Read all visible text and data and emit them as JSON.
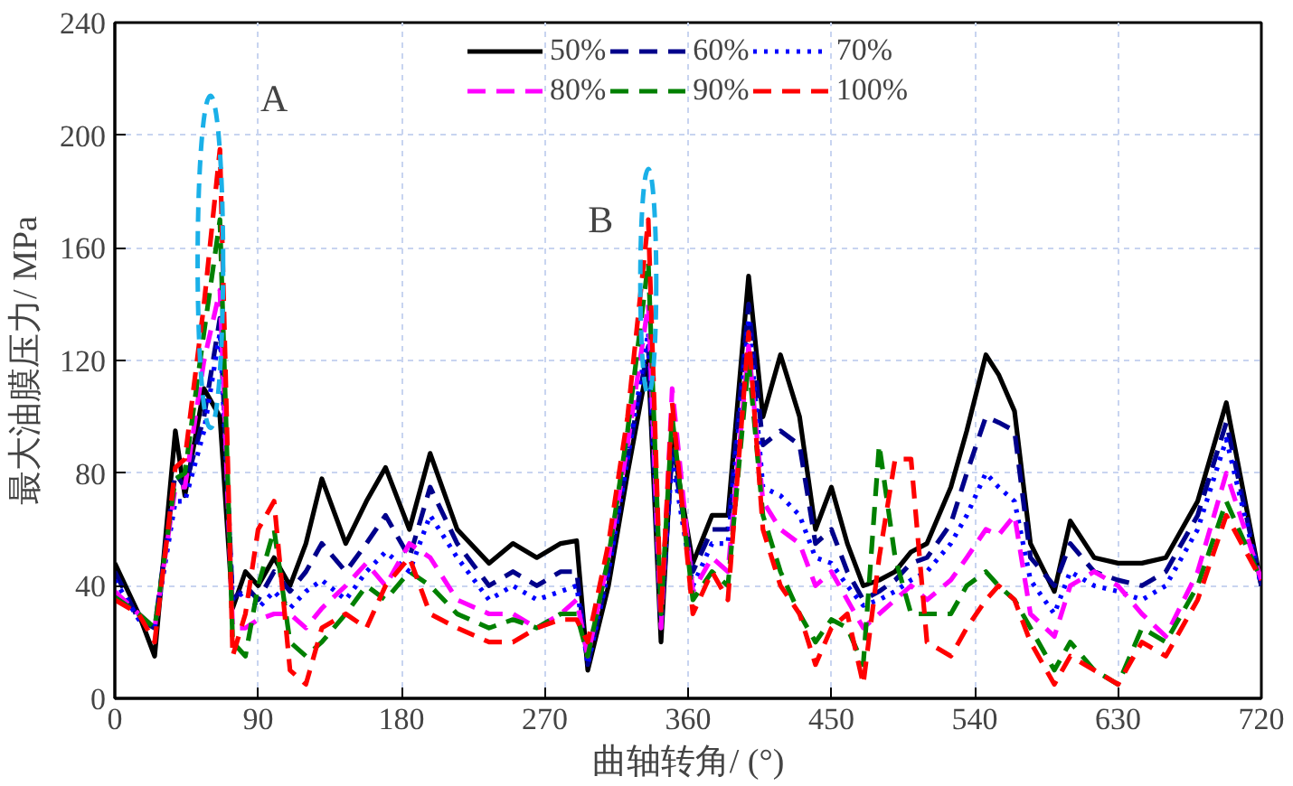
{
  "chart_data": {
    "type": "line",
    "xlabel": "曲轴转角/ (°)",
    "ylabel": "最大油膜压力/ MPa",
    "x": [
      0,
      15,
      25,
      38,
      44,
      56,
      66,
      74,
      82,
      90,
      100,
      110,
      120,
      130,
      145,
      158,
      170,
      185,
      198,
      215,
      235,
      250,
      265,
      280,
      290,
      297,
      310,
      322,
      335,
      343,
      350,
      363,
      375,
      385,
      398,
      407,
      418,
      430,
      440,
      450,
      460,
      470,
      480,
      490,
      500,
      510,
      525,
      535,
      547,
      555,
      565,
      575,
      590,
      600,
      615,
      630,
      645,
      660,
      680,
      698,
      720
    ],
    "xlim": [
      0,
      720
    ],
    "xticks": [
      0,
      90,
      180,
      270,
      360,
      450,
      540,
      630,
      720
    ],
    "ylim": [
      0,
      240
    ],
    "yticks": [
      0,
      40,
      80,
      120,
      160,
      200,
      240
    ],
    "grid": true,
    "legend": "top",
    "annotations": [
      "A",
      "B"
    ],
    "series": [
      {
        "name": "50%",
        "color": "#000000",
        "line_style": "solid",
        "values": [
          48,
          30,
          15,
          95,
          72,
          110,
          100,
          32,
          45,
          40,
          50,
          40,
          55,
          78,
          55,
          70,
          82,
          60,
          87,
          60,
          48,
          55,
          50,
          55,
          56,
          10,
          40,
          80,
          120,
          20,
          92,
          48,
          65,
          65,
          150,
          100,
          122,
          100,
          60,
          75,
          55,
          40,
          42,
          45,
          52,
          55,
          75,
          95,
          122,
          115,
          102,
          55,
          38,
          63,
          50,
          48,
          48,
          50,
          70,
          105,
          40
        ]
      },
      {
        "name": "60%",
        "color": "#00008b",
        "line_style": "dashed",
        "values": [
          45,
          28,
          25,
          80,
          75,
          100,
          135,
          35,
          40,
          35,
          45,
          38,
          45,
          55,
          45,
          55,
          65,
          50,
          75,
          55,
          40,
          45,
          40,
          45,
          45,
          12,
          45,
          85,
          125,
          25,
          88,
          45,
          60,
          60,
          140,
          90,
          95,
          90,
          55,
          60,
          45,
          35,
          38,
          42,
          48,
          50,
          62,
          80,
          100,
          98,
          95,
          50,
          40,
          55,
          45,
          42,
          40,
          45,
          65,
          98,
          40
        ]
      },
      {
        "name": "70%",
        "color": "#0000ff",
        "line_style": "dotted",
        "values": [
          42,
          28,
          25,
          70,
          70,
          95,
          130,
          35,
          38,
          32,
          38,
          32,
          38,
          42,
          35,
          45,
          52,
          45,
          65,
          50,
          35,
          40,
          35,
          38,
          40,
          12,
          45,
          85,
          130,
          30,
          85,
          40,
          55,
          55,
          135,
          75,
          72,
          65,
          50,
          48,
          40,
          33,
          35,
          38,
          42,
          45,
          55,
          65,
          80,
          75,
          70,
          42,
          30,
          45,
          40,
          38,
          35,
          40,
          60,
          92,
          40
        ]
      },
      {
        "name": "80%",
        "color": "#ff00ff",
        "line_style": "dashed",
        "values": [
          38,
          30,
          25,
          75,
          75,
          120,
          145,
          25,
          25,
          28,
          30,
          30,
          25,
          32,
          40,
          48,
          40,
          55,
          50,
          35,
          30,
          30,
          25,
          30,
          35,
          15,
          50,
          90,
          140,
          25,
          110,
          38,
          50,
          45,
          125,
          70,
          60,
          55,
          40,
          45,
          35,
          25,
          30,
          35,
          40,
          35,
          42,
          50,
          60,
          58,
          65,
          30,
          22,
          40,
          45,
          40,
          30,
          22,
          45,
          80,
          42
        ]
      },
      {
        "name": "90%",
        "color": "#008000",
        "line_style": "dashed",
        "values": [
          36,
          30,
          25,
          78,
          80,
          130,
          170,
          20,
          15,
          40,
          60,
          20,
          15,
          20,
          30,
          40,
          35,
          45,
          40,
          30,
          25,
          28,
          25,
          30,
          30,
          15,
          50,
          95,
          155,
          30,
          100,
          35,
          45,
          40,
          120,
          65,
          45,
          30,
          20,
          28,
          25,
          12,
          90,
          50,
          30,
          30,
          30,
          40,
          45,
          40,
          35,
          25,
          10,
          20,
          10,
          5,
          25,
          20,
          40,
          70,
          42
        ]
      },
      {
        "name": "100%",
        "color": "#ff0000",
        "line_style": "dashed",
        "values": [
          35,
          30,
          20,
          82,
          85,
          140,
          195,
          15,
          30,
          60,
          70,
          10,
          5,
          25,
          30,
          25,
          40,
          50,
          30,
          25,
          20,
          20,
          25,
          28,
          28,
          20,
          55,
          100,
          170,
          30,
          105,
          30,
          45,
          35,
          130,
          60,
          40,
          30,
          12,
          25,
          30,
          5,
          50,
          85,
          85,
          20,
          15,
          25,
          35,
          40,
          35,
          20,
          5,
          15,
          10,
          5,
          20,
          15,
          35,
          65,
          42
        ]
      }
    ]
  }
}
